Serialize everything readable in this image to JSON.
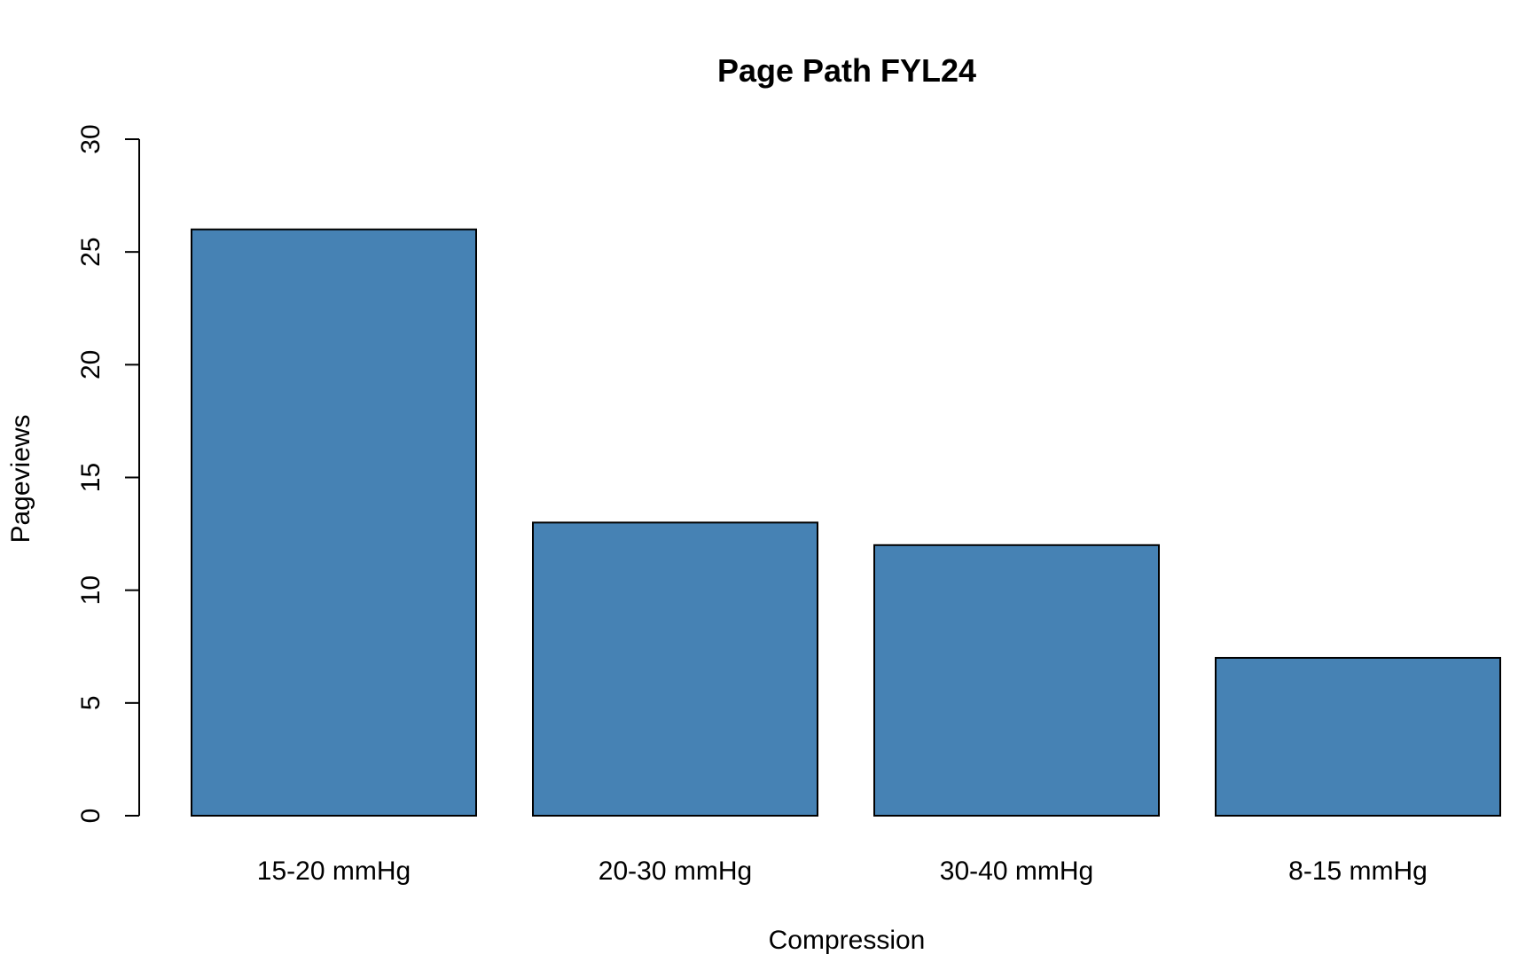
{
  "chart_data": {
    "type": "bar",
    "title": "Page Path FYL24",
    "xlabel": "Compression",
    "ylabel": "Pageviews",
    "categories": [
      "15-20 mmHg",
      "20-30 mmHg",
      "30-40 mmHg",
      "8-15 mmHg"
    ],
    "values": [
      26,
      13,
      12,
      7
    ],
    "ylim": [
      0,
      30
    ],
    "yticks": [
      "0",
      "5",
      "10",
      "15",
      "20",
      "25",
      "30"
    ],
    "grid": false,
    "legend": "none",
    "bar_color": "#4682B4",
    "edge_color": "#000000"
  }
}
